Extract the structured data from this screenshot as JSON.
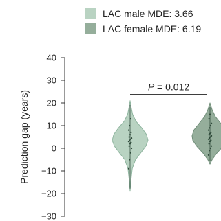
{
  "chart_data": {
    "type": "violin",
    "title": "",
    "xlabel": "",
    "ylabel": "Prediction gap (years)",
    "ylim": [
      -30,
      40
    ],
    "yticks": [
      40,
      30,
      20,
      10,
      0,
      -10,
      -20,
      -30
    ],
    "legend_position": "top",
    "series": [
      {
        "name": "LAC male MDE: 3.66",
        "color": "#b9d3c2",
        "edge_color": "#8fb59f",
        "mde": 3.66,
        "min": -19,
        "max": 21,
        "profile": [
          {
            "y": -19,
            "w": 0.0
          },
          {
            "y": -14,
            "w": 0.05
          },
          {
            "y": -9,
            "w": 0.12
          },
          {
            "y": -5,
            "w": 0.3
          },
          {
            "y": -2,
            "w": 0.6
          },
          {
            "y": 1,
            "w": 0.88
          },
          {
            "y": 3.5,
            "w": 1.0
          },
          {
            "y": 6,
            "w": 0.92
          },
          {
            "y": 9,
            "w": 0.65
          },
          {
            "y": 12,
            "w": 0.32
          },
          {
            "y": 15,
            "w": 0.14
          },
          {
            "y": 18,
            "w": 0.06
          },
          {
            "y": 21,
            "w": 0.0
          }
        ],
        "points": [
          -9,
          -5,
          -2,
          0,
          1,
          2,
          2.5,
          3,
          3.5,
          4,
          4.5,
          5,
          6,
          7,
          8,
          10,
          13
        ]
      },
      {
        "name": "LAC female MDE: 6.19",
        "color": "#95ae9b",
        "edge_color": "#6f8d78",
        "mde": 6.19,
        "min": -7,
        "max": 20,
        "profile": [
          {
            "y": -7,
            "w": 0.0
          },
          {
            "y": -5,
            "w": 0.12
          },
          {
            "y": -2,
            "w": 0.4
          },
          {
            "y": 1,
            "w": 0.75
          },
          {
            "y": 3.5,
            "w": 0.96
          },
          {
            "y": 5.5,
            "w": 1.0
          },
          {
            "y": 8,
            "w": 0.9
          },
          {
            "y": 11,
            "w": 0.6
          },
          {
            "y": 14,
            "w": 0.3
          },
          {
            "y": 17,
            "w": 0.12
          },
          {
            "y": 20,
            "w": 0.0
          }
        ],
        "points": [
          -3,
          -1,
          0,
          1,
          2,
          3,
          3.5,
          4,
          4.5,
          5,
          5.5,
          6,
          6.5,
          7,
          8,
          9,
          10,
          11,
          13,
          15
        ]
      }
    ],
    "annotations": [
      {
        "text": "P = 0.012",
        "italic_prefix": "P",
        "rest": " = 0.012",
        "y": 28
      }
    ]
  }
}
